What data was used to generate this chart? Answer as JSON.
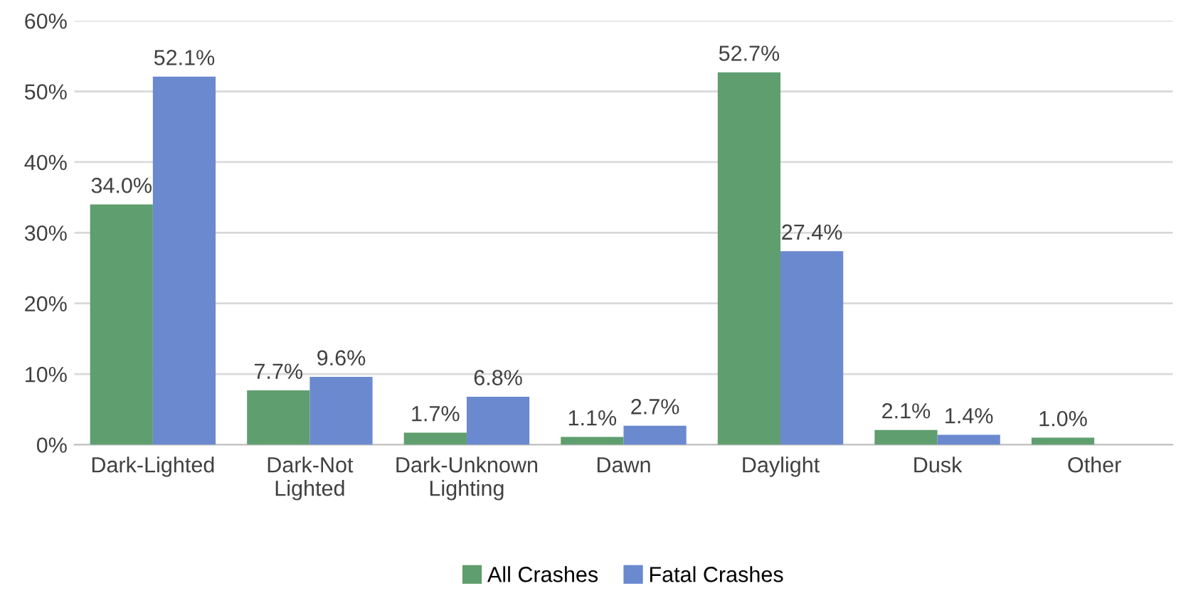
{
  "chart_data": {
    "type": "bar",
    "categories": [
      "Dark-Lighted",
      "Dark-Not Lighted",
      "Dark-Unknown Lighting",
      "Dawn",
      "Daylight",
      "Dusk",
      "Other"
    ],
    "series": [
      {
        "name": "All Crashes",
        "color": "#5f9e6e",
        "values": [
          34.0,
          7.7,
          1.7,
          1.1,
          52.7,
          2.1,
          1.0
        ],
        "value_labels": [
          "34.0%",
          "7.7%",
          "1.7%",
          "1.1%",
          "52.7%",
          "2.1%",
          "1.0%"
        ]
      },
      {
        "name": "Fatal Crashes",
        "color": "#6a89cf",
        "values": [
          52.1,
          9.6,
          6.8,
          2.7,
          27.4,
          1.4,
          null
        ],
        "value_labels": [
          "52.1%",
          "9.6%",
          "6.8%",
          "2.7%",
          "27.4%",
          "1.4%",
          null
        ]
      }
    ],
    "ylim": [
      0,
      60
    ],
    "yticks": [
      {
        "value": 0,
        "label": "0%"
      },
      {
        "value": 10,
        "label": "10%"
      },
      {
        "value": 20,
        "label": "20%"
      },
      {
        "value": 30,
        "label": "30%"
      },
      {
        "value": 40,
        "label": "40%"
      },
      {
        "value": 50,
        "label": "50%"
      },
      {
        "value": 60,
        "label": "60%"
      }
    ],
    "grid": "y",
    "legend": "bottom"
  }
}
